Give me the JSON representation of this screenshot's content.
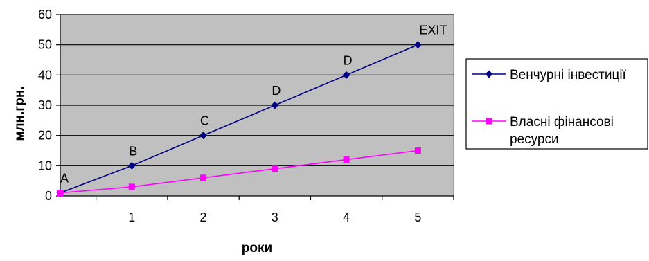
{
  "chart_data": {
    "type": "line",
    "xlabel": "роки",
    "ylabel": "млн.грн.",
    "x": [
      0,
      1,
      2,
      3,
      4,
      5
    ],
    "x_tick_labels": [
      "1",
      "2",
      "3",
      "4",
      "5"
    ],
    "xlim": [
      0,
      5.5
    ],
    "ylim": [
      0,
      60
    ],
    "y_ticks": [
      0,
      10,
      20,
      30,
      40,
      50,
      60
    ],
    "grid": "horizontal",
    "plot_background": "#c0c0c0",
    "legend_position": "right",
    "series": [
      {
        "name": "Венчурні інвестиції",
        "values": [
          1,
          10,
          20,
          30,
          40,
          50
        ],
        "point_labels": [
          "A",
          "B",
          "C",
          "D",
          "D",
          "EXIT"
        ],
        "color": "#000080",
        "marker": "diamond"
      },
      {
        "name_lines": [
          "Власні фінансові",
          "ресурси"
        ],
        "name": "Власні фінансові ресурси",
        "values": [
          1,
          3,
          6,
          9,
          12,
          15
        ],
        "color": "#ff00ff",
        "marker": "square"
      }
    ]
  }
}
